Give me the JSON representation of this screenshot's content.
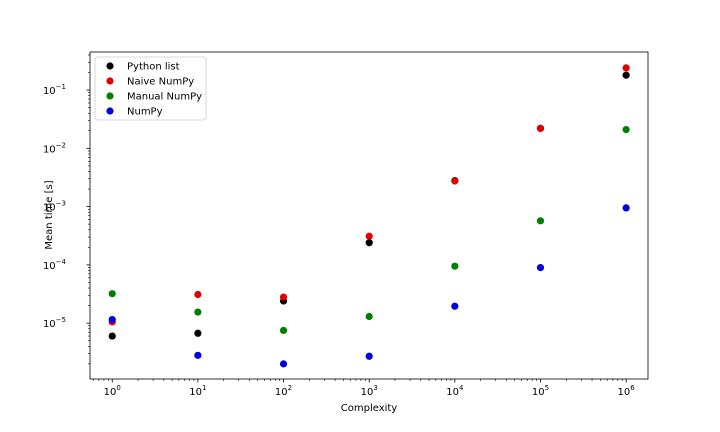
{
  "chart_data": {
    "type": "scatter",
    "xlabel": "Complexity",
    "ylabel": "Mean time [s]",
    "xscale": "log",
    "yscale": "log",
    "xlim": [
      0.55,
      1800000.0
    ],
    "ylim": [
      1.1e-06,
      0.45
    ],
    "grid": false,
    "legend_position": "top-left",
    "x_ticks": [
      {
        "base": "10",
        "exp": "0",
        "value": 1
      },
      {
        "base": "10",
        "exp": "1",
        "value": 10
      },
      {
        "base": "10",
        "exp": "2",
        "value": 100
      },
      {
        "base": "10",
        "exp": "3",
        "value": 1000
      },
      {
        "base": "10",
        "exp": "4",
        "value": 10000
      },
      {
        "base": "10",
        "exp": "5",
        "value": 100000
      },
      {
        "base": "10",
        "exp": "6",
        "value": 1000000
      }
    ],
    "y_ticks": [
      {
        "base": "10",
        "exp": "−5",
        "value": 1e-05
      },
      {
        "base": "10",
        "exp": "−4",
        "value": 0.0001
      },
      {
        "base": "10",
        "exp": "−3",
        "value": 0.001
      },
      {
        "base": "10",
        "exp": "−2",
        "value": 0.01
      },
      {
        "base": "10",
        "exp": "−1",
        "value": 0.1
      }
    ],
    "x": [
      1,
      10,
      100,
      1000,
      10000,
      100000,
      1000000
    ],
    "series": [
      {
        "name": "Python list",
        "color": "#000000",
        "values": [
          6e-06,
          6.7e-06,
          2.4e-05,
          0.00024,
          0.0028,
          0.022,
          0.18
        ]
      },
      {
        "name": "Naive NumPy",
        "color": "#e00000",
        "values": [
          1.05e-05,
          3.1e-05,
          2.8e-05,
          0.00031,
          0.00275,
          0.022,
          0.24
        ]
      },
      {
        "name": "Manual NumPy",
        "color": "#008000",
        "values": [
          3.2e-05,
          1.55e-05,
          7.5e-06,
          1.3e-05,
          9.5e-05,
          0.00057,
          0.021
        ]
      },
      {
        "name": "NumPy",
        "color": "#0000e0",
        "values": [
          1.15e-05,
          2.8e-06,
          2e-06,
          2.7e-06,
          1.95e-05,
          9e-05,
          0.00095
        ]
      }
    ]
  }
}
